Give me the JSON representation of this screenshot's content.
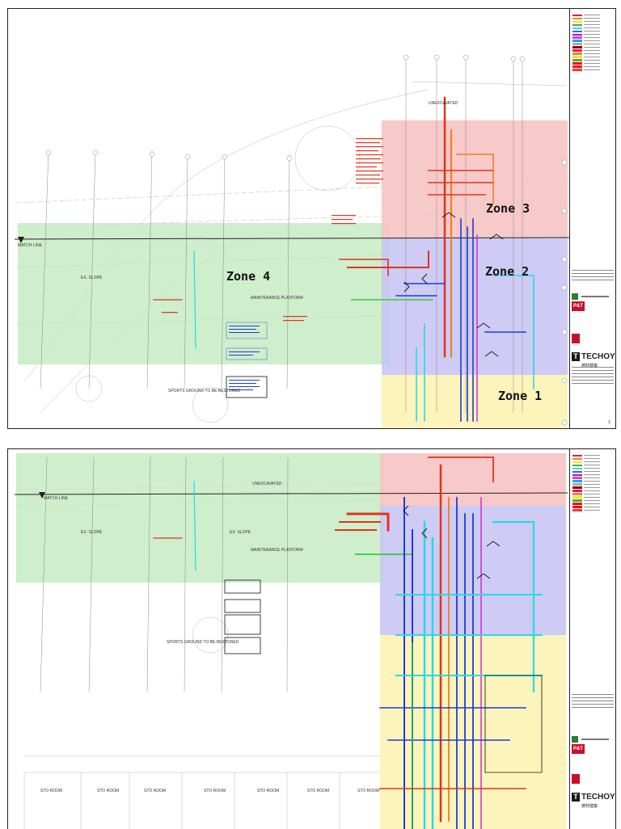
{
  "drawing": {
    "top_sheet": {
      "zones": [
        {
          "id": "zone-1",
          "label": "Zone 1"
        },
        {
          "id": "zone-2",
          "label": "Zone 2"
        },
        {
          "id": "zone-3",
          "label": "Zone 3"
        },
        {
          "id": "zone-4",
          "label": "Zone 4"
        }
      ],
      "annotations": {
        "unexcavated": "UNEXCAVATED",
        "match_line": "MATCH LINE",
        "ex_slope": "EX. SLOPE",
        "sports_ground": "SPORTS GROUND TO BE RESTORED",
        "maintenance_platform": "MAINTENANCE PLATFORM"
      },
      "sheet_number": "1"
    },
    "bottom_sheet": {
      "annotations": {
        "unexcavated": "UNEXCAVATED",
        "match_line": "MATCH LINE",
        "ex_slope_left": "EX. SLOPE",
        "ex_slope_right": "EX. SLOPE",
        "sports_ground": "SPORTS GROUND TO BE RESTORED",
        "maintenance_platform": "MAINTENANCE PLATFORM"
      },
      "rooms": [
        "STO ROOM",
        "STO ROOM",
        "STO ROOM",
        "STO ROOM",
        "STO ROOM",
        "STO ROOM",
        "STO ROOM"
      ]
    },
    "title_block": {
      "consultant": "P&T",
      "contractor": "TECHOY",
      "contractor_cn": "德材建築"
    },
    "colors": {
      "zone1_fill": "#fdf3b4",
      "zone2_fill": "#c9c5f3",
      "zone3_fill": "#f6c3c3",
      "zone4_fill": "#c5ebc3",
      "pipe_red": "#e0341a",
      "pipe_orange": "#ef7c1a",
      "pipe_blue": "#1d3cd8",
      "pipe_cyan": "#28d9e8",
      "pipe_green": "#37c93a",
      "pipe_magenta": "#d21fd2",
      "line_grey": "#9a9a9a"
    },
    "legend_colors": [
      "#e6194b",
      "#f58231",
      "#ffe119",
      "#3cb44b",
      "#42d4f4",
      "#4363d8",
      "#911eb4",
      "#f032e6",
      "#00aaff",
      "#a9a9a9",
      "#800000",
      "#e6194b",
      "#f58231",
      "#ffe119",
      "#3cb44b",
      "#ff0000",
      "#ff0000",
      "#ff3333"
    ]
  }
}
